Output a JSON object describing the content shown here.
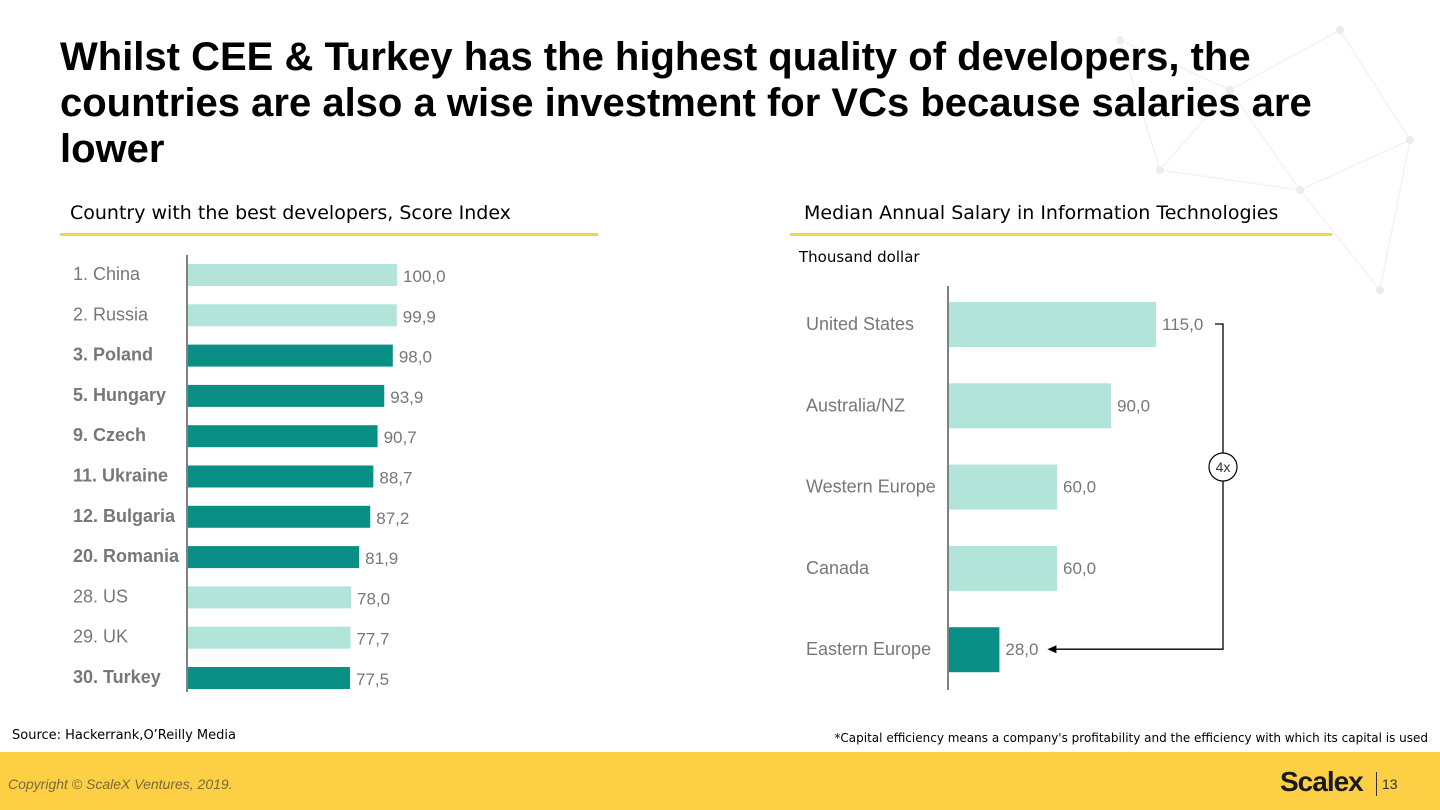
{
  "slide": {
    "title": "Whilst CEE & Turkey has the highest quality of developers, the countries are also a wise investment for VCs because salaries are lower",
    "source": "Source: Hackerrank,O’Reilly Media",
    "footnote": "*Capital efficiency means a company's profitability and the efficiency with which its capital is used",
    "copyright": "Copyright © ScaleX Ventures, 2019.",
    "logo": "Scalex",
    "page_number": "13"
  },
  "colors": {
    "accent_line": "#f5d547",
    "highlight_bar": "#0a8f86",
    "default_bar": "#b2e4d9",
    "footer": "#fccf45"
  },
  "chart_data": [
    {
      "type": "bar",
      "orientation": "horizontal",
      "title": "Country with the best developers, Score Index",
      "categories": [
        "1. China",
        "2. Russia",
        "3. Poland",
        "5. Hungary",
        "9. Czech",
        "11. Ukraine",
        "12. Bulgaria",
        "20. Romania",
        "28. US",
        "29. UK",
        "30. Turkey"
      ],
      "values": [
        100.0,
        99.9,
        98.0,
        93.9,
        90.7,
        88.7,
        87.2,
        81.9,
        78.0,
        77.7,
        77.5
      ],
      "value_labels": [
        "100,0",
        "99,9",
        "98,0",
        "93,9",
        "90,7",
        "88,7",
        "87,2",
        "81,9",
        "78,0",
        "77,7",
        "77,5"
      ],
      "highlighted": [
        false,
        false,
        true,
        true,
        true,
        true,
        true,
        true,
        false,
        false,
        true
      ],
      "xlim": [
        0,
        100
      ]
    },
    {
      "type": "bar",
      "orientation": "horizontal",
      "title": "Median Annual Salary in Information Technologies",
      "unit_label": "Thousand dollar",
      "categories": [
        "United States",
        "Australia/NZ",
        "Western Europe",
        "Canada",
        "Eastern Europe"
      ],
      "values": [
        115.0,
        90.0,
        60.0,
        60.0,
        28.0
      ],
      "value_labels": [
        "115,0",
        "90,0",
        "60,0",
        "60,0",
        "28,0"
      ],
      "highlighted": [
        false,
        false,
        false,
        false,
        true
      ],
      "xlim": [
        0,
        115
      ],
      "annotation": "4x"
    }
  ]
}
